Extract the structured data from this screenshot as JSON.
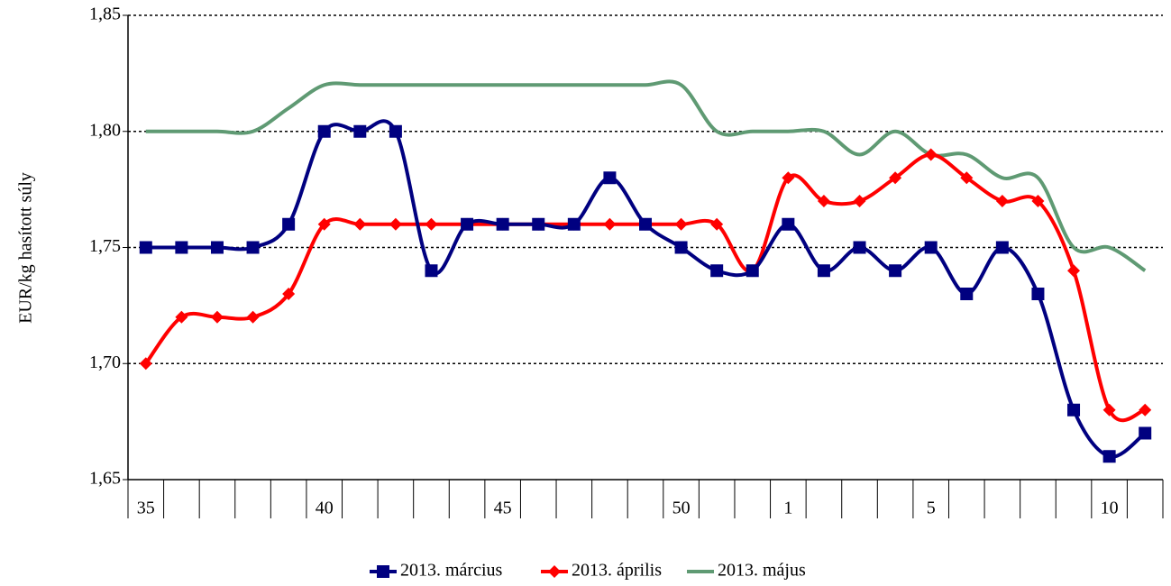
{
  "chart_data": {
    "type": "line",
    "y_label": "EUR/kg hasított súly",
    "categories": [
      "35",
      null,
      null,
      null,
      null,
      "40",
      null,
      null,
      null,
      null,
      "45",
      null,
      null,
      null,
      null,
      "50",
      null,
      null,
      "1",
      null,
      null,
      null,
      "5",
      null,
      null,
      null,
      null,
      "10",
      null
    ],
    "series": [
      {
        "name": "2013. március",
        "color": "#000080",
        "marker": "square",
        "values": [
          1.75,
          1.75,
          1.75,
          1.75,
          1.76,
          1.8,
          1.8,
          1.8,
          1.74,
          1.76,
          1.76,
          1.76,
          1.76,
          1.78,
          1.76,
          1.75,
          1.74,
          1.74,
          1.76,
          1.74,
          1.75,
          1.74,
          1.75,
          1.73,
          1.75,
          1.73,
          1.68,
          1.66,
          1.67
        ]
      },
      {
        "name": "2013. április",
        "color": "#ff0000",
        "marker": "diamond",
        "values": [
          1.7,
          1.72,
          1.72,
          1.72,
          1.73,
          1.76,
          1.76,
          1.76,
          1.76,
          1.76,
          1.76,
          1.76,
          1.76,
          1.76,
          1.76,
          1.76,
          1.76,
          1.74,
          1.78,
          1.77,
          1.77,
          1.78,
          1.79,
          1.78,
          1.77,
          1.77,
          1.74,
          1.68,
          1.68
        ]
      },
      {
        "name": "2013. május",
        "color": "#5f9a73",
        "marker": "none",
        "values": [
          1.8,
          1.8,
          1.8,
          1.8,
          1.81,
          1.82,
          1.82,
          1.82,
          1.82,
          1.82,
          1.82,
          1.82,
          1.82,
          1.82,
          1.82,
          1.82,
          1.8,
          1.8,
          1.8,
          1.8,
          1.79,
          1.8,
          1.79,
          1.79,
          1.78,
          1.78,
          1.75,
          1.75,
          1.74
        ]
      }
    ],
    "ylim": [
      1.65,
      1.85
    ],
    "yticks": [
      {
        "value": 1.65,
        "label": "1,65"
      },
      {
        "value": 1.7,
        "label": "1,70"
      },
      {
        "value": 1.75,
        "label": "1,75"
      },
      {
        "value": 1.8,
        "label": "1,80"
      },
      {
        "value": 1.85,
        "label": "1,85"
      }
    ],
    "grid": true,
    "legend": "bottom"
  }
}
